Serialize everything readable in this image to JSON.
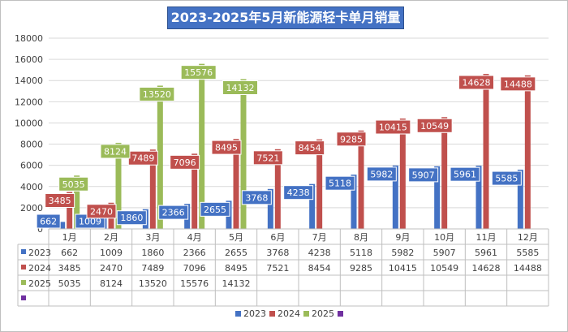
{
  "chart_data": {
    "type": "bar",
    "title": "2023-2025年5月新能源轻卡单月销量",
    "categories": [
      "1月",
      "2月",
      "3月",
      "4月",
      "5月",
      "6月",
      "7月",
      "8月",
      "9月",
      "10月",
      "11月",
      "12月"
    ],
    "series": [
      {
        "name": "2023",
        "color": "#4472c4",
        "values": [
          662,
          1009,
          1860,
          2366,
          2655,
          3768,
          4238,
          5118,
          5982,
          5907,
          5961,
          5585
        ]
      },
      {
        "name": "2024",
        "color": "#c0504d",
        "values": [
          3485,
          2470,
          7489,
          7096,
          8495,
          7521,
          8454,
          9285,
          10415,
          10549,
          14628,
          14488
        ]
      },
      {
        "name": "2025",
        "color": "#9bbb59",
        "values": [
          5035,
          8124,
          13520,
          15576,
          14132,
          null,
          null,
          null,
          null,
          null,
          null,
          null
        ]
      },
      {
        "name": "",
        "color": "#7030a0",
        "values": [
          null,
          null,
          null,
          null,
          null,
          null,
          null,
          null,
          null,
          null,
          null,
          null
        ]
      }
    ],
    "ylim": [
      0,
      18000
    ],
    "yticks": [
      0,
      2000,
      4000,
      6000,
      8000,
      10000,
      12000,
      14000,
      16000,
      18000
    ],
    "xlabel": "",
    "ylabel": "",
    "grid": true,
    "legend": "bottom",
    "data_table": true
  }
}
